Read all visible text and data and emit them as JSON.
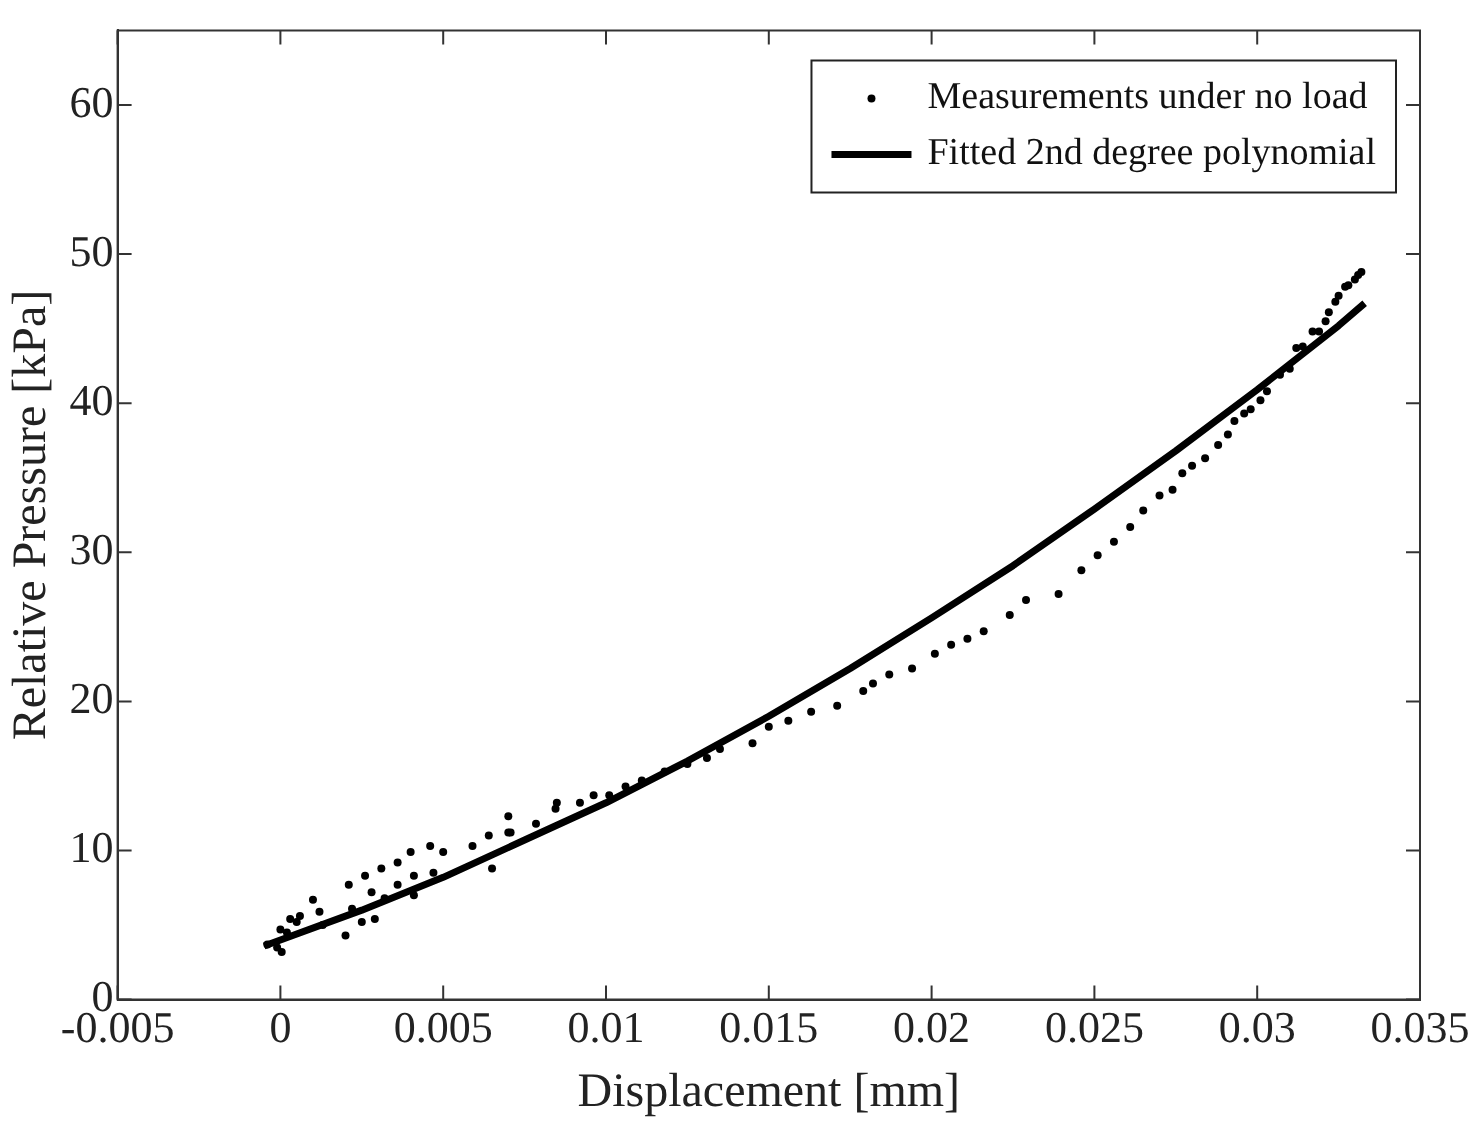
{
  "chart_data": {
    "type": "scatter",
    "xlabel": "Displacement [mm]",
    "ylabel": "Relative Pressure [kPa]",
    "xlim": [
      -0.005,
      0.035
    ],
    "xticks": [
      -0.005,
      0,
      0.005,
      0.01,
      0.015,
      0.02,
      0.025,
      0.03,
      0.035
    ],
    "ylim": [
      0,
      65
    ],
    "yticks": [
      0,
      10,
      20,
      30,
      40,
      50,
      60
    ],
    "legend": "top right",
    "series": [
      {
        "name": "Measurements under no load",
        "type": "scatter",
        "marker": "circle",
        "color": "#000000",
        "x": [
          -0.0004,
          4e-05,
          0,
          0.0003,
          0.0006,
          0.001,
          0.0012,
          0.0013,
          0.002,
          0.0021,
          0.0022,
          0.0025,
          0.0026,
          0.0028,
          0.0029,
          0.0031,
          0.0032,
          0.0036,
          0.0036,
          0.004,
          0.0041,
          0.0041,
          0.0046,
          0.0047,
          0.005,
          0.0059,
          0.0064,
          0.0065,
          0.007,
          0.007,
          -0.0001,
          0.0002,
          0.0005,
          0.00707,
          0.00785,
          0.00849,
          0.00845,
          0.0092,
          0.00962,
          0.0101,
          0.0106,
          0.0111,
          0.0118,
          0.0125,
          0.0131,
          0.0135,
          0.0145,
          0.015,
          0.0156,
          0.0163,
          0.0171,
          0.0179,
          0.0182,
          0.0187,
          0.0194,
          0.0201,
          0.0206,
          0.0211,
          0.0216,
          0.0224,
          0.0229,
          0.0239,
          0.0246,
          0.0251,
          0.0256,
          0.0261,
          0.0265,
          0.027,
          0.0274,
          0.0277,
          0.028,
          0.0284,
          0.0288,
          0.0291,
          0.0293,
          0.0296,
          0.0298,
          0.0301,
          0.0303,
          0.0307,
          0.031,
          0.0312,
          0.0314,
          0.0317,
          0.0319,
          0.0321,
          0.0322,
          0.0324,
          0.0325,
          0.0327,
          0.0328,
          0.033,
          0.0331,
          0.0332
        ],
        "values": [
          3.7,
          3.2,
          4.7,
          5.4,
          5.6,
          6.7,
          5.9,
          5,
          4.3,
          7.7,
          6.1,
          5.2,
          8.3,
          7.2,
          5.4,
          8.8,
          6.8,
          9.2,
          7.7,
          9.9,
          8.3,
          7,
          10.3,
          8.5,
          9.9,
          10.3,
          11,
          8.8,
          12.3,
          11.2,
          3.5,
          4.5,
          5.2,
          11.2,
          11.8,
          13.2,
          12.8,
          13.2,
          13.7,
          13.7,
          14.3,
          14.7,
          15.3,
          15.8,
          16.2,
          16.8,
          17.2,
          18.3,
          18.7,
          19.3,
          19.7,
          20.7,
          21.2,
          21.8,
          22.2,
          23.2,
          23.8,
          24.2,
          24.7,
          25.8,
          26.8,
          27.2,
          28.8,
          29.8,
          30.7,
          31.7,
          32.8,
          33.8,
          34.2,
          35.3,
          35.8,
          36.3,
          37.2,
          37.9,
          38.8,
          39.3,
          39.6,
          40.2,
          40.8,
          41.9,
          42.3,
          43.7,
          43.8,
          44.8,
          44.8,
          45.5,
          46.1,
          46.8,
          47.2,
          47.8,
          47.9,
          48.3,
          48.6,
          48.8
        ]
      },
      {
        "name": "Fitted 2nd degree polynomial",
        "type": "line",
        "marker": "none",
        "color": "#000000",
        "x": [
          -0.0005,
          0,
          0.0025,
          0.005,
          0.0075,
          0.01,
          0.0125,
          0.015,
          0.0175,
          0.02,
          0.0225,
          0.025,
          0.0275,
          0.03,
          0.0325,
          0.0333
        ],
        "values": [
          3.6,
          4,
          6,
          8.2,
          10.7,
          13.2,
          16,
          19,
          22.2,
          25.6,
          29.1,
          32.9,
          36.8,
          40.9,
          45.2,
          46.7
        ]
      }
    ]
  }
}
